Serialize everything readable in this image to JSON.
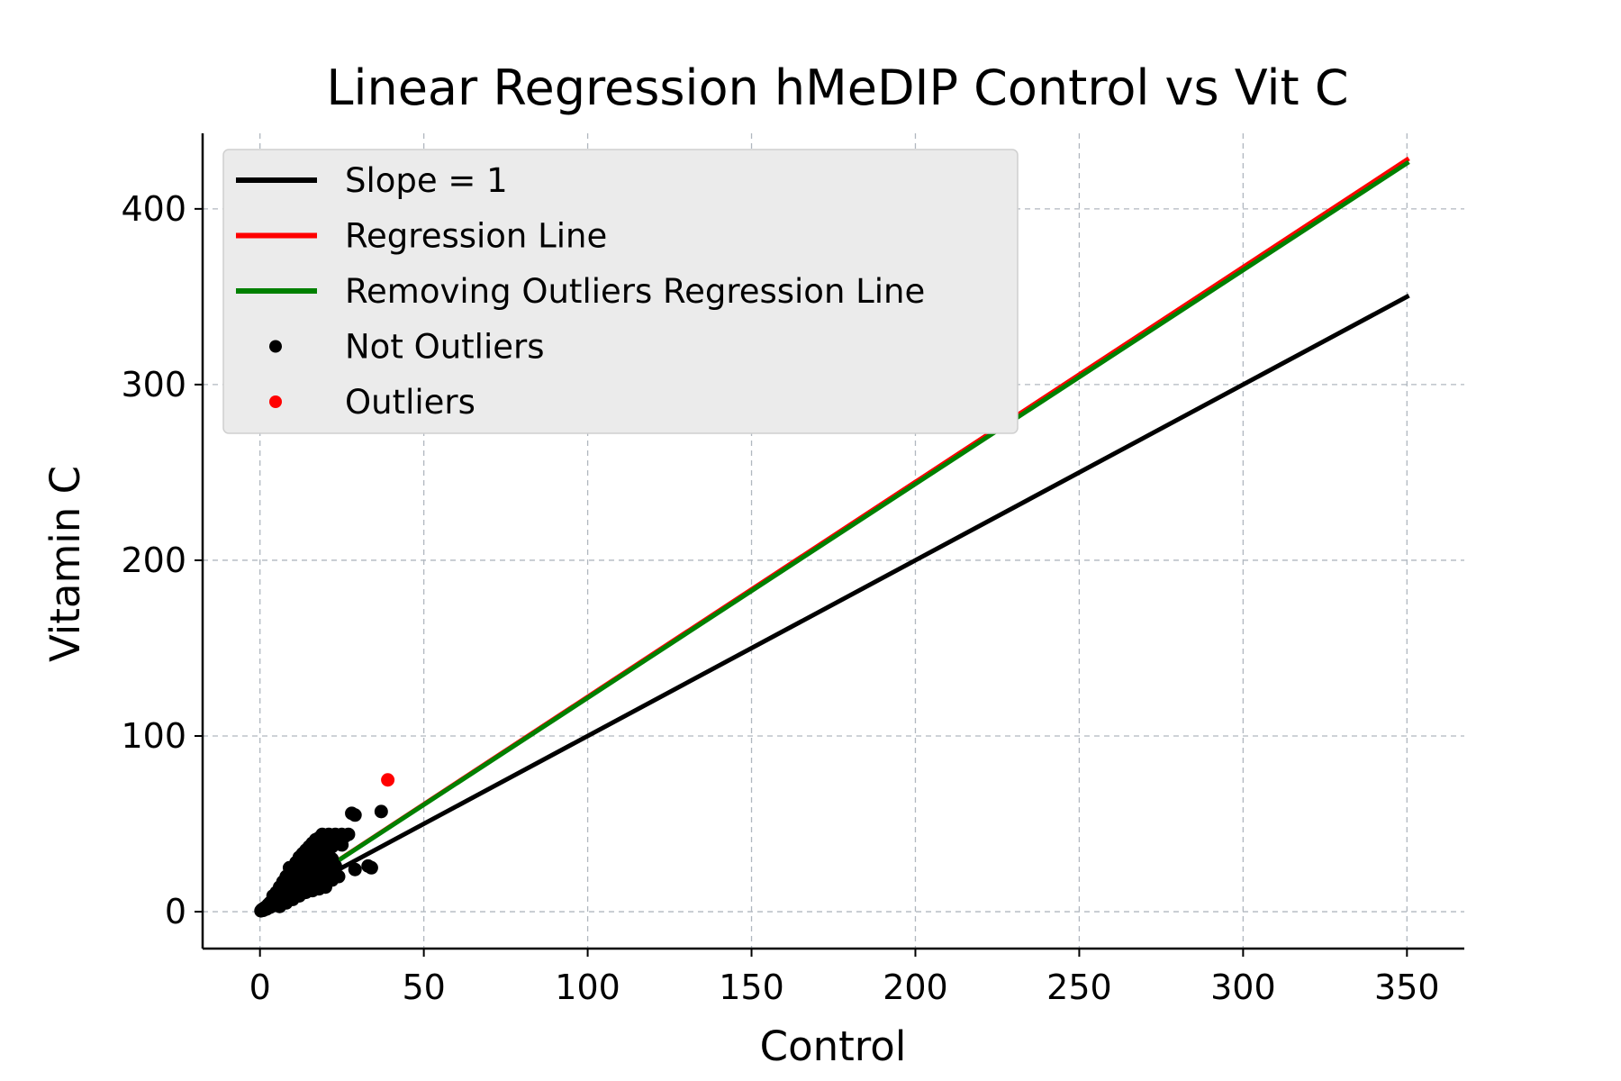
{
  "chart_data": {
    "type": "scatter",
    "title": "Linear Regression hMeDIP Control vs Vit C",
    "xlabel": "Control",
    "ylabel": "Vitamin C",
    "xlim": [
      -17.5,
      367.5
    ],
    "ylim": [
      -21,
      443
    ],
    "xticks": [
      0,
      50,
      100,
      150,
      200,
      250,
      300,
      350
    ],
    "yticks": [
      0,
      100,
      200,
      300,
      400
    ],
    "grid": true,
    "legend_position": "top-left",
    "colors": {
      "slope_line": "#000000",
      "regression_line": "#ff0000",
      "outlier_free_line": "#008000",
      "not_outliers": "#000000",
      "outliers": "#ff0000"
    },
    "series": [
      {
        "name": "Slope = 1",
        "kind": "line",
        "color": "#000000",
        "x": [
          0,
          350
        ],
        "y": [
          0,
          350
        ]
      },
      {
        "name": "Regression Line",
        "kind": "line",
        "color": "#ff0000",
        "x": [
          0,
          350
        ],
        "y": [
          0,
          428
        ]
      },
      {
        "name": "Removing Outliers Regression Line",
        "kind": "line",
        "color": "#008000",
        "x": [
          0,
          350
        ],
        "y": [
          0,
          426
        ]
      },
      {
        "name": "Not Outliers",
        "kind": "scatter",
        "color": "#000000",
        "points": [
          [
            0.3,
            0.5
          ],
          [
            0.6,
            1.2
          ],
          [
            1,
            0.8
          ],
          [
            1.2,
            2
          ],
          [
            1.5,
            1.5
          ],
          [
            2,
            3
          ],
          [
            2,
            1.5
          ],
          [
            2.5,
            4
          ],
          [
            3,
            2.5
          ],
          [
            3,
            5
          ],
          [
            3.5,
            3
          ],
          [
            4,
            6
          ],
          [
            4,
            3.5
          ],
          [
            4.5,
            7
          ],
          [
            5,
            4
          ],
          [
            5,
            8
          ],
          [
            5.5,
            6
          ],
          [
            6,
            9
          ],
          [
            6,
            5
          ],
          [
            6.5,
            11
          ],
          [
            7,
            7
          ],
          [
            7,
            12
          ],
          [
            7.5,
            9
          ],
          [
            8,
            14
          ],
          [
            8,
            8
          ],
          [
            8.5,
            10
          ],
          [
            9,
            16
          ],
          [
            9,
            9
          ],
          [
            9.5,
            12
          ],
          [
            10,
            18
          ],
          [
            10,
            11
          ],
          [
            10.5,
            14
          ],
          [
            11,
            20
          ],
          [
            11,
            10
          ],
          [
            11.5,
            15
          ],
          [
            12,
            22
          ],
          [
            12,
            13
          ],
          [
            12.5,
            17
          ],
          [
            13,
            25
          ],
          [
            13,
            12
          ],
          [
            13.5,
            19
          ],
          [
            14,
            27
          ],
          [
            14,
            14
          ],
          [
            14.5,
            21
          ],
          [
            15,
            30
          ],
          [
            15,
            16
          ],
          [
            15.5,
            23
          ],
          [
            16,
            33
          ],
          [
            16,
            15
          ],
          [
            16.5,
            25
          ],
          [
            17,
            36
          ],
          [
            17,
            18
          ],
          [
            17.5,
            27
          ],
          [
            18,
            38
          ],
          [
            18,
            17
          ],
          [
            18.5,
            22
          ],
          [
            19,
            40
          ],
          [
            19,
            20
          ],
          [
            19.5,
            29
          ],
          [
            20,
            42
          ],
          [
            20,
            21
          ],
          [
            21,
            44
          ],
          [
            21,
            25
          ],
          [
            22,
            43
          ],
          [
            22,
            30
          ],
          [
            23,
            44
          ],
          [
            23,
            26
          ],
          [
            24,
            42
          ],
          [
            25,
            44
          ],
          [
            26,
            43
          ],
          [
            12,
            31
          ],
          [
            14,
            35
          ],
          [
            16,
            39
          ],
          [
            18,
            42
          ],
          [
            9,
            25
          ],
          [
            8,
            20
          ],
          [
            7,
            17
          ],
          [
            6,
            14
          ],
          [
            5,
            11
          ],
          [
            4,
            9
          ],
          [
            11,
            28
          ],
          [
            13,
            33
          ],
          [
            15,
            37
          ],
          [
            17,
            41
          ],
          [
            19,
            44
          ],
          [
            20,
            35
          ],
          [
            21,
            38
          ],
          [
            22,
            37
          ],
          [
            16,
            28
          ],
          [
            18,
            30
          ],
          [
            10,
            7
          ],
          [
            12,
            9
          ],
          [
            14,
            11
          ],
          [
            16,
            12
          ],
          [
            18,
            13
          ],
          [
            20,
            14
          ],
          [
            22,
            18
          ],
          [
            24,
            20
          ],
          [
            6,
            3
          ],
          [
            8,
            5
          ],
          [
            28,
            56
          ],
          [
            29,
            55
          ],
          [
            33,
            26
          ],
          [
            34,
            25
          ],
          [
            29,
            24
          ],
          [
            37,
            57
          ],
          [
            27,
            44
          ],
          [
            25,
            38
          ]
        ]
      },
      {
        "name": "Outliers",
        "kind": "scatter",
        "color": "#ff0000",
        "points": [
          [
            39,
            75
          ]
        ]
      }
    ]
  }
}
